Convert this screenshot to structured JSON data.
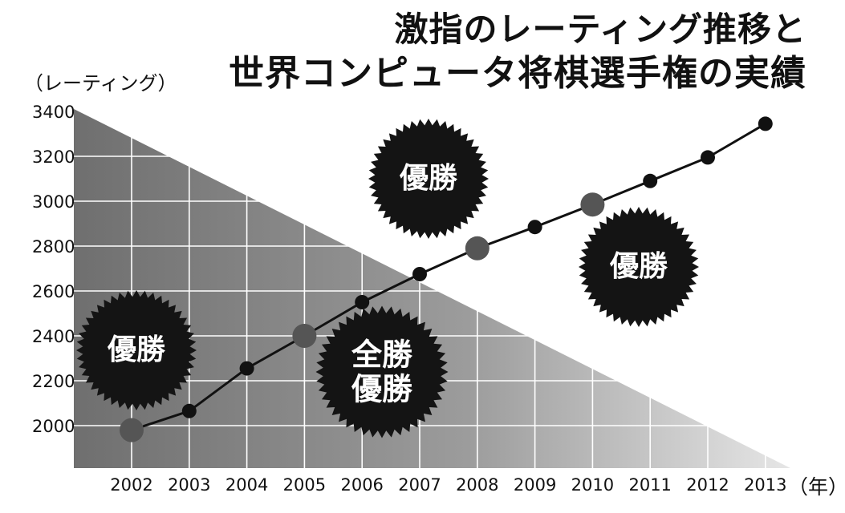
{
  "title_line1": "激指のレーティング推移と",
  "title_line2": "世界コンピュータ将棋選手権の実績",
  "chart_data": {
    "type": "line",
    "ylabel": "（レーティング）",
    "xunit": "（年）",
    "x": [
      2002,
      2003,
      2004,
      2005,
      2006,
      2007,
      2008,
      2009,
      2010,
      2011,
      2012,
      2013
    ],
    "ylim": [
      1800,
      3400
    ],
    "yticks": [
      2000,
      2200,
      2400,
      2600,
      2800,
      3000,
      3200,
      3400
    ],
    "grid": true,
    "series": [
      {
        "values": [
          1980,
          2065,
          2255,
          2400,
          2550,
          2675,
          2790,
          2885,
          2985,
          3090,
          3195,
          3345
        ]
      }
    ],
    "highlighted_years": [
      2002,
      2005,
      2008,
      2010
    ],
    "annotations": [
      {
        "year": 2002,
        "lines": [
          "優勝"
        ]
      },
      {
        "year": 2005,
        "lines": [
          "全勝",
          "優勝"
        ]
      },
      {
        "year": 2008,
        "lines": [
          "優勝"
        ]
      },
      {
        "year": 2010,
        "lines": [
          "優勝"
        ]
      }
    ]
  },
  "colors": {
    "line": "#111111",
    "point": "#111111",
    "highlight_point": "#555555",
    "badge": "#141414",
    "grid": "#ffffff"
  }
}
